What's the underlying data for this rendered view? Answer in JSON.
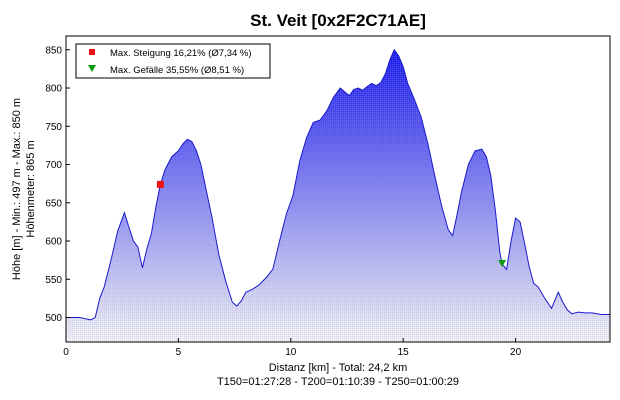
{
  "chart_data": {
    "type": "area",
    "title": "St. Veit [0x2F2C71AE]",
    "xlabel": "Distanz [km] - Total: 24,2 km",
    "xlabel_sub": "T150=01:27:28 - T200=01:10:39 - T250=01:00:29",
    "ylabel": "Höhe [m] - Min.: 497 m - Max.: 850 m",
    "ylabel_sub": "Höhenmeter: 865 m",
    "xlim": [
      0,
      24.2
    ],
    "ylim": [
      468,
      868
    ],
    "x_ticks": [
      0,
      5,
      10,
      15,
      20
    ],
    "x_tick_labels": [
      "0",
      "5",
      "10",
      "15",
      "20"
    ],
    "y_ticks": [
      500,
      550,
      600,
      650,
      700,
      750,
      800,
      850
    ],
    "y_tick_labels": [
      "500",
      "550",
      "600",
      "650",
      "700",
      "750",
      "800",
      "850"
    ],
    "grid": false,
    "legend_position": "top-left",
    "colors": {
      "fill_top": "#1a1af0",
      "fill_bottom": "#f4f4f8",
      "line": "#1a1acc",
      "max_climb_marker": "#ee1111",
      "max_descent_marker": "#119911"
    },
    "legend": [
      {
        "name": "Max. Steigung 16,21% (Ø7,34 %)",
        "marker": "square",
        "color": "#ee1111"
      },
      {
        "name": "Max. Gefälle 35,55% (Ø8,51 %)",
        "marker": "triangle-down",
        "color": "#119911"
      }
    ],
    "markers": [
      {
        "name": "Max. Steigung",
        "x": 4.2,
        "y": 674
      },
      {
        "name": "Max. Gefälle",
        "x": 19.4,
        "y": 570
      }
    ],
    "series": [
      {
        "x": [
          0,
          0.6,
          1.1,
          1.3,
          1.5,
          1.7,
          2.0,
          2.3,
          2.6,
          2.8,
          3.0,
          3.2,
          3.4,
          3.6,
          3.8,
          4.0,
          4.2,
          4.4,
          4.7,
          5.0,
          5.2,
          5.4,
          5.6,
          5.8,
          6.0,
          6.2,
          6.5,
          6.8,
          7.1,
          7.4,
          7.6,
          7.8,
          8.0,
          8.3,
          8.6,
          8.9,
          9.2,
          9.5,
          9.8,
          10.1,
          10.4,
          10.7,
          11.0,
          11.3,
          11.6,
          11.9,
          12.2,
          12.4,
          12.6,
          12.8,
          13.0,
          13.2,
          13.4,
          13.6,
          13.8,
          14.0,
          14.2,
          14.4,
          14.6,
          14.8,
          15.0,
          15.2,
          15.5,
          15.8,
          16.1,
          16.4,
          16.7,
          17.0,
          17.2,
          17.4,
          17.6,
          17.9,
          18.2,
          18.5,
          18.7,
          18.9,
          19.1,
          19.3,
          19.4,
          19.6,
          19.8,
          20.0,
          20.2,
          20.4,
          20.6,
          20.8,
          21.0,
          21.3,
          21.6,
          21.9,
          22.1,
          22.3,
          22.5,
          22.8,
          23.1,
          23.4,
          23.8,
          24.2
        ],
        "y": [
          500,
          500,
          497,
          500,
          525,
          540,
          575,
          613,
          637,
          618,
          600,
          592,
          565,
          590,
          610,
          645,
          674,
          693,
          710,
          718,
          727,
          733,
          730,
          718,
          700,
          672,
          630,
          582,
          548,
          520,
          515,
          522,
          533,
          537,
          543,
          552,
          563,
          600,
          635,
          660,
          705,
          735,
          755,
          758,
          770,
          788,
          800,
          795,
          790,
          798,
          800,
          797,
          802,
          806,
          803,
          807,
          818,
          836,
          850,
          842,
          828,
          806,
          785,
          762,
          727,
          686,
          647,
          615,
          607,
          635,
          665,
          700,
          718,
          720,
          710,
          685,
          640,
          585,
          570,
          563,
          600,
          630,
          625,
          597,
          567,
          545,
          540,
          525,
          512,
          533,
          520,
          510,
          505,
          507,
          506,
          506,
          504,
          504
        ]
      }
    ]
  }
}
